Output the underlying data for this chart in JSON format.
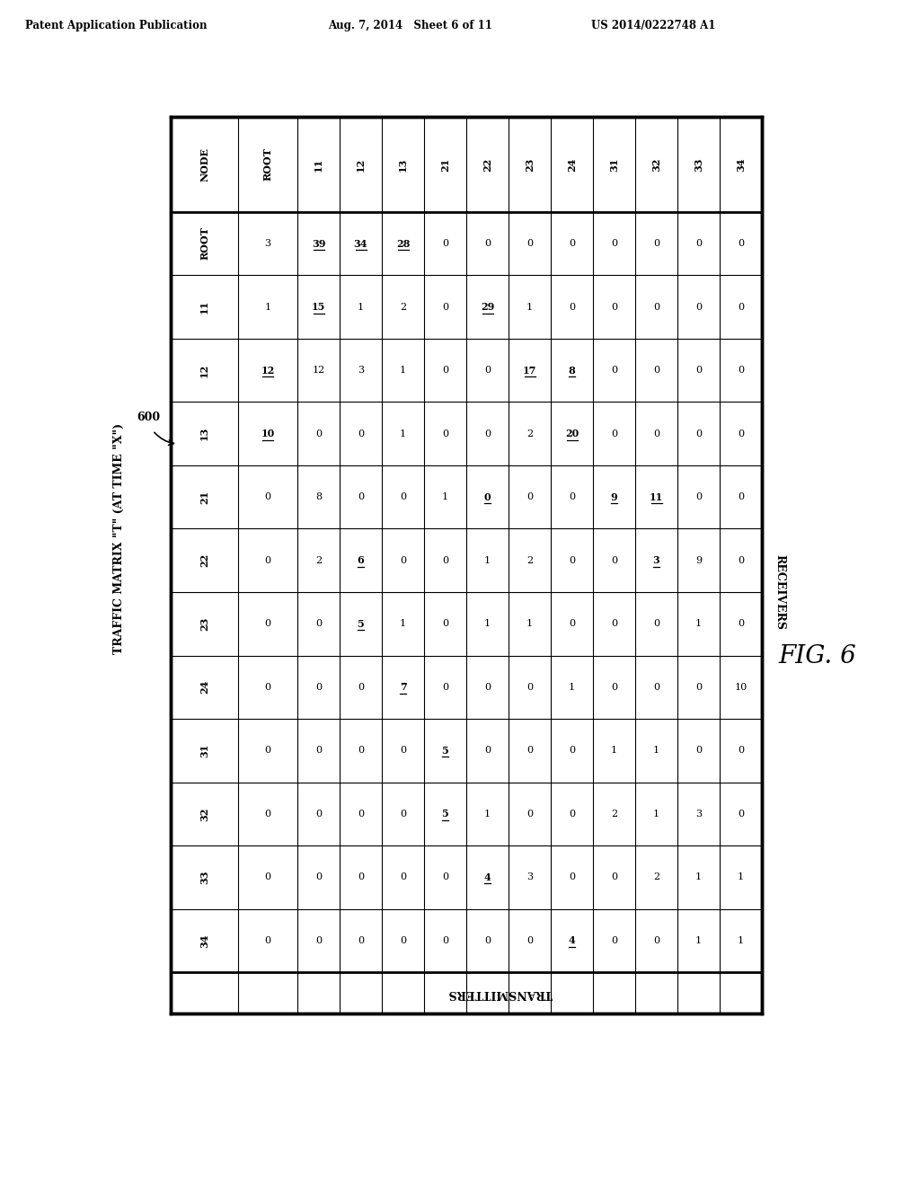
{
  "col_headers": [
    "NODE",
    "ROOT",
    "11",
    "12",
    "13",
    "21",
    "22",
    "23",
    "24",
    "31",
    "32",
    "33",
    "34"
  ],
  "row_labels": [
    "ROOT",
    "11",
    "12",
    "13",
    "21",
    "22",
    "23",
    "24",
    "31",
    "32",
    "33",
    "34"
  ],
  "data": [
    [
      "3",
      "39",
      "34",
      "28",
      "0",
      "0",
      "0",
      "0",
      "0",
      "0",
      "0",
      "0"
    ],
    [
      "1",
      "15",
      "1",
      "2",
      "0",
      "29",
      "1",
      "0",
      "0",
      "0",
      "0",
      "0"
    ],
    [
      "12",
      "12",
      "3",
      "1",
      "0",
      "0",
      "17",
      "8",
      "0",
      "0",
      "0",
      "0"
    ],
    [
      "10",
      "0",
      "0",
      "1",
      "0",
      "0",
      "2",
      "20",
      "0",
      "0",
      "0",
      "0"
    ],
    [
      "0",
      "8",
      "0",
      "0",
      "1",
      "0",
      "0",
      "0",
      "9",
      "11",
      "0",
      "0"
    ],
    [
      "0",
      "2",
      "6",
      "0",
      "0",
      "1",
      "2",
      "0",
      "0",
      "3",
      "9",
      "0"
    ],
    [
      "0",
      "0",
      "5",
      "1",
      "0",
      "1",
      "1",
      "0",
      "0",
      "0",
      "1",
      "0"
    ],
    [
      "0",
      "0",
      "0",
      "7",
      "0",
      "0",
      "0",
      "1",
      "0",
      "0",
      "0",
      "10"
    ],
    [
      "0",
      "0",
      "0",
      "0",
      "5",
      "0",
      "0",
      "0",
      "1",
      "1",
      "0",
      "0"
    ],
    [
      "0",
      "0",
      "0",
      "0",
      "5",
      "1",
      "0",
      "0",
      "2",
      "1",
      "3",
      "0"
    ],
    [
      "0",
      "0",
      "0",
      "0",
      "0",
      "4",
      "3",
      "0",
      "0",
      "2",
      "1",
      "1"
    ],
    [
      "0",
      "0",
      "0",
      "0",
      "0",
      "0",
      "0",
      "4",
      "0",
      "0",
      "1",
      "1"
    ]
  ],
  "bold_underline": [
    [
      0,
      1
    ],
    [
      0,
      2
    ],
    [
      0,
      3
    ],
    [
      1,
      1
    ],
    [
      1,
      5
    ],
    [
      2,
      0
    ],
    [
      2,
      6
    ],
    [
      2,
      7
    ],
    [
      3,
      0
    ],
    [
      3,
      7
    ],
    [
      4,
      5
    ],
    [
      4,
      8
    ],
    [
      4,
      9
    ],
    [
      5,
      2
    ],
    [
      5,
      9
    ],
    [
      6,
      2
    ],
    [
      7,
      3
    ],
    [
      8,
      4
    ],
    [
      9,
      4
    ],
    [
      10,
      5
    ],
    [
      11,
      7
    ]
  ],
  "header_line1": "Patent Application Publication",
  "header_line2": "Aug. 7, 2014   Sheet 6 of 11",
  "header_line3": "US 2014/0222748 A1",
  "fig_label": "FIG. 6",
  "title_left": "TRAFFIC MATRIX \"T\" (AT TIME \"X\")",
  "label_600": "600",
  "label_receivers": "RECEIVERS",
  "label_transmitters": "TRANSMITTERS"
}
